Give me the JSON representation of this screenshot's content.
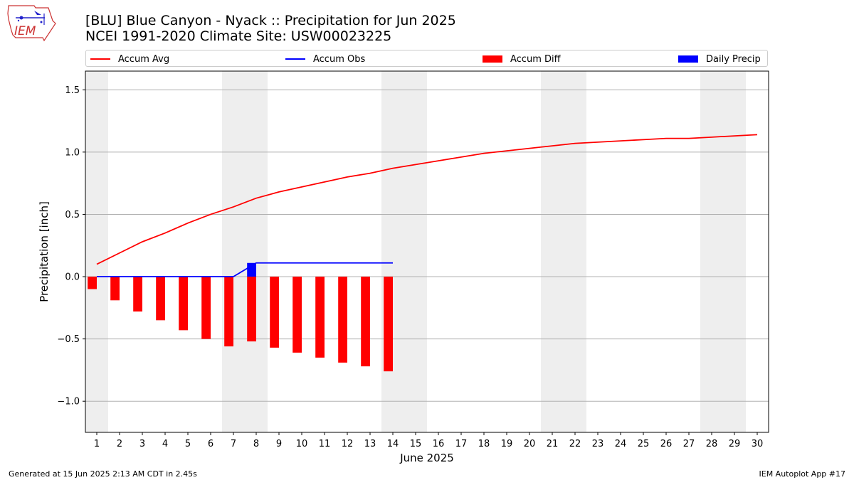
{
  "header": {
    "title_line1": "[BLU] Blue Canyon - Nyack :: Precipitation for Jun 2025",
    "title_line2": "NCEI 1991-2020 Climate Site: USW00023225"
  },
  "logo": {
    "text": "IEM"
  },
  "footer": {
    "left": "Generated at 15 Jun 2025 2:13 AM CDT in 2.45s",
    "right": "IEM Autoplot App #17"
  },
  "colors": {
    "accum_avg": "#ff0000",
    "accum_obs": "#0000ff",
    "accum_diff": "#ff0000",
    "daily_precip": "#0000ff",
    "weekend_band": "#eeeeee",
    "grid": "#b0b0b0"
  },
  "chart_data": {
    "type": "line",
    "xlabel": "June 2025",
    "ylabel": "Precipitation [inch]",
    "ylim": [
      -1.25,
      1.65
    ],
    "yticks": [
      -1.0,
      -0.5,
      0.0,
      0.5,
      1.0,
      1.5
    ],
    "ytick_labels": [
      "−1.0",
      "−0.5",
      "0.0",
      "0.5",
      "1.0",
      "1.5"
    ],
    "xticks": [
      1,
      2,
      3,
      4,
      5,
      6,
      7,
      8,
      9,
      10,
      11,
      12,
      13,
      14,
      15,
      16,
      17,
      18,
      19,
      20,
      21,
      22,
      23,
      24,
      25,
      26,
      27,
      28,
      29,
      30
    ],
    "weekend_days": [
      1,
      7,
      8,
      14,
      15,
      21,
      22,
      28,
      29
    ],
    "grid": "horizontal",
    "legend_position": "top",
    "legend": [
      "Accum Avg",
      "Accum Obs",
      "Accum Diff",
      "Daily Precip"
    ],
    "series": [
      {
        "name": "Accum Avg",
        "type": "line",
        "x": [
          1,
          2,
          3,
          4,
          5,
          6,
          7,
          8,
          9,
          10,
          11,
          12,
          13,
          14,
          15,
          16,
          17,
          18,
          19,
          20,
          21,
          22,
          23,
          24,
          25,
          26,
          27,
          28,
          29,
          30
        ],
        "values": [
          0.1,
          0.19,
          0.28,
          0.35,
          0.43,
          0.5,
          0.56,
          0.63,
          0.68,
          0.72,
          0.76,
          0.8,
          0.83,
          0.87,
          0.9,
          0.93,
          0.96,
          0.99,
          1.01,
          1.03,
          1.05,
          1.07,
          1.08,
          1.09,
          1.1,
          1.11,
          1.11,
          1.12,
          1.13,
          1.14
        ]
      },
      {
        "name": "Accum Obs",
        "type": "line",
        "x": [
          1,
          2,
          3,
          4,
          5,
          6,
          7,
          8,
          9,
          10,
          11,
          12,
          13,
          14
        ],
        "values": [
          0,
          0,
          0,
          0,
          0,
          0,
          0,
          0.11,
          0.11,
          0.11,
          0.11,
          0.11,
          0.11,
          0.11
        ]
      },
      {
        "name": "Accum Diff",
        "type": "bar",
        "x": [
          1,
          2,
          3,
          4,
          5,
          6,
          7,
          8,
          9,
          10,
          11,
          12,
          13,
          14
        ],
        "values": [
          -0.1,
          -0.19,
          -0.28,
          -0.35,
          -0.43,
          -0.5,
          -0.56,
          -0.52,
          -0.57,
          -0.61,
          -0.65,
          -0.69,
          -0.72,
          -0.76
        ]
      },
      {
        "name": "Daily Precip",
        "type": "bar",
        "x": [
          8
        ],
        "values": [
          0.11
        ]
      }
    ]
  }
}
